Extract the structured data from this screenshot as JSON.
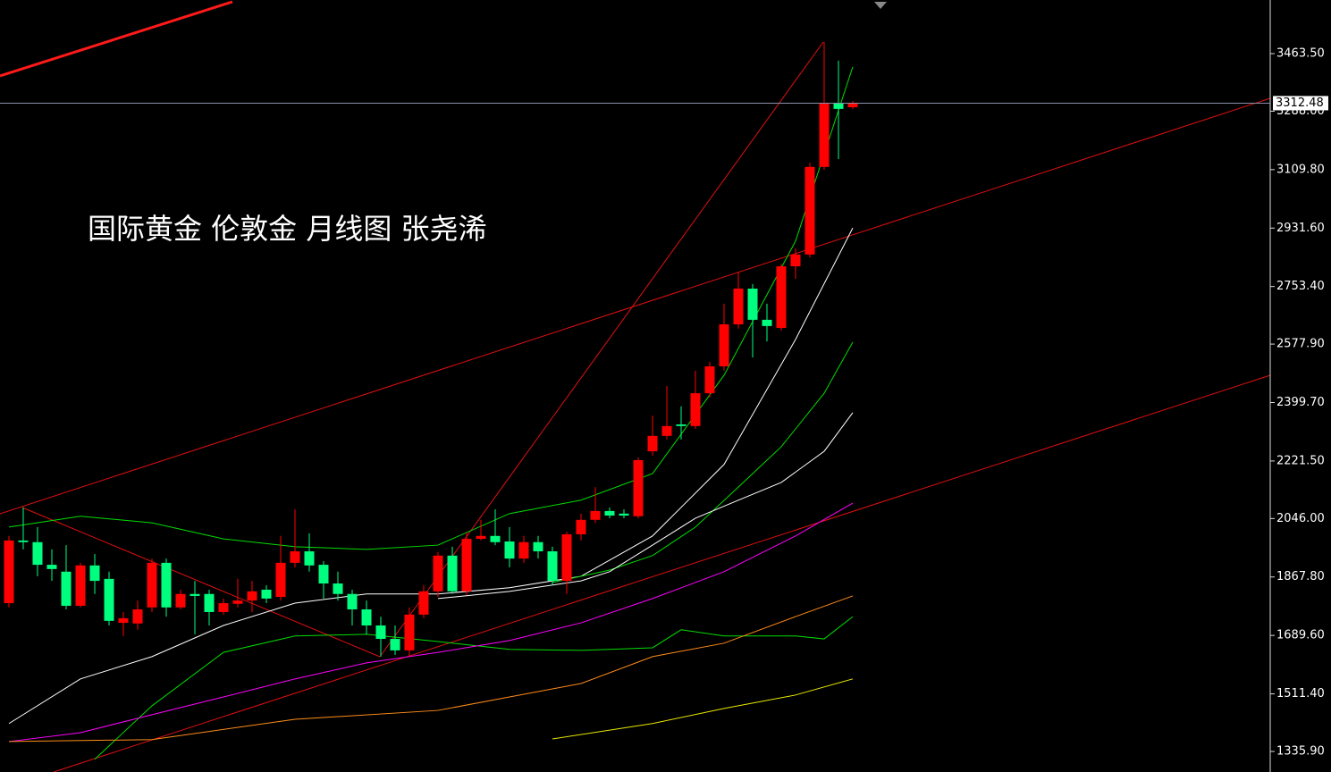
{
  "chart_data": {
    "type": "candlestick",
    "title": "国际黄金 伦敦金  月线图 张尧浠",
    "up_color": "#ff0000",
    "down_color": "#00ff7f",
    "open": [
      1788,
      1979,
      1974,
      1905,
      1884,
      1780,
      1903,
      1862,
      1728,
      1726,
      1775,
      1911,
      1775,
      1816,
      1816,
      1761,
      1786,
      1796,
      1829,
      1807,
      1911,
      1946,
      1905,
      1848,
      1816,
      1769,
      1720,
      1679,
      1644,
      1753,
      1824,
      1933,
      1824,
      1984,
      1993,
      1976,
      1924,
      1974,
      1946,
      1856,
      1998,
      2042,
      2069,
      2061,
      2053,
      2251,
      2298,
      2333,
      2328,
      2428,
      2510,
      2638,
      2747,
      2652,
      2627,
      2815,
      2851,
      3118,
      3311,
      3300
    ],
    "high": [
      1993,
      2080,
      2020,
      1952,
      1965,
      1911,
      1938,
      1884,
      1761,
      1796,
      1924,
      1924,
      1829,
      1856,
      1829,
      1802,
      1862,
      1856,
      1843,
      1993,
      2074,
      2001,
      1916,
      1884,
      1829,
      1796,
      1747,
      1720,
      1775,
      1843,
      1944,
      1960,
      2003,
      2042,
      2074,
      2020,
      1993,
      1993,
      1960,
      2006,
      2061,
      2142,
      2080,
      2074,
      2232,
      2360,
      2450,
      2388,
      2497,
      2524,
      2701,
      2796,
      2761,
      2701,
      2823,
      2870,
      3131,
      3499,
      3442,
      3319
    ],
    "low": [
      1775,
      1952,
      1870,
      1856,
      1769,
      1775,
      1816,
      1720,
      1688,
      1707,
      1761,
      1747,
      1769,
      1693,
      1720,
      1753,
      1775,
      1761,
      1788,
      1796,
      1897,
      1884,
      1802,
      1796,
      1720,
      1693,
      1625,
      1630,
      1625,
      1742,
      1807,
      1816,
      1813,
      1979,
      1965,
      1897,
      1911,
      1924,
      1843,
      1816,
      1979,
      2033,
      2047,
      2047,
      2047,
      2238,
      2287,
      2287,
      2319,
      2415,
      2497,
      2625,
      2537,
      2586,
      2619,
      2777,
      2842,
      3109,
      3142,
      3295
    ],
    "close": [
      1979,
      1974,
      1905,
      1892,
      1780,
      1903,
      1856,
      1734,
      1742,
      1769,
      1911,
      1775,
      1816,
      1810,
      1761,
      1788,
      1796,
      1824,
      1802,
      1911,
      1946,
      1903,
      1848,
      1816,
      1769,
      1720,
      1679,
      1644,
      1753,
      1824,
      1933,
      1824,
      1984,
      1993,
      1974,
      1924,
      1974,
      1946,
      1856,
      1998,
      2042,
      2069,
      2055,
      2055,
      2224,
      2298,
      2328,
      2328,
      2428,
      2510,
      2638,
      2747,
      2652,
      2633,
      2815,
      2851,
      3118,
      3311,
      3295,
      3311
    ],
    "ylim": [
      1273.2,
      3627
    ],
    "yticks": [
      {
        "value": 1335.9,
        "label": "1335.90"
      },
      {
        "value": 1511.4,
        "label": "1511.40"
      },
      {
        "value": 1689.6,
        "label": "1689.60"
      },
      {
        "value": 1867.8,
        "label": "1867.80"
      },
      {
        "value": 2046,
        "label": "2046.00"
      },
      {
        "value": 2221.5,
        "label": "2221.50"
      },
      {
        "value": 2399.7,
        "label": "2399.70"
      },
      {
        "value": 2577.9,
        "label": "2577.90"
      },
      {
        "value": 2753.4,
        "label": "2753.40"
      },
      {
        "value": 2931.6,
        "label": "2931.60"
      },
      {
        "value": 3109.8,
        "label": "3109.80"
      },
      {
        "value": 3288,
        "label": "3288.00"
      },
      {
        "value": 3463.5,
        "label": "3463.50"
      }
    ],
    "last_price": 3312.48,
    "overlays": [
      {
        "color": "#ffffff",
        "x": [
          0,
          5,
          10,
          15,
          20,
          25,
          30,
          35,
          40,
          45,
          50,
          55,
          59
        ],
        "values": [
          1421,
          1557,
          1625,
          1720,
          1788,
          1816,
          1816,
          1835,
          1870,
          1993,
          2211,
          2592,
          2932
        ]
      },
      {
        "color": "#00dd00",
        "x": [
          0,
          5,
          10,
          15,
          20,
          25,
          30,
          35,
          40,
          45,
          50,
          55,
          59
        ],
        "values": [
          2020,
          2053,
          2033,
          1984,
          1960,
          1952,
          1965,
          2061,
          2102,
          2183,
          2483,
          2892,
          3423
        ]
      },
      {
        "color": "#00dd00",
        "x": [
          6,
          10,
          15,
          20,
          25,
          30,
          35,
          40,
          45,
          47,
          50,
          55,
          57,
          59
        ],
        "values": [
          1312,
          1475,
          1638,
          1688,
          1693,
          1671,
          1647,
          1644,
          1652,
          1707,
          1688,
          1688,
          1679,
          1747
        ]
      },
      {
        "color": "#00dd00",
        "x": [
          38,
          42,
          45,
          48,
          51,
          54,
          57,
          59
        ],
        "values": [
          1851,
          1889,
          1933,
          2020,
          2142,
          2265,
          2428,
          2584
        ]
      },
      {
        "color": "#ffffff",
        "x": [
          30,
          35,
          40,
          42,
          45,
          48,
          51,
          54,
          57,
          59
        ],
        "values": [
          1802,
          1824,
          1856,
          1884,
          1965,
          2047,
          2102,
          2156,
          2251,
          2369
        ]
      },
      {
        "color": "#ff00ff",
        "x": [
          0,
          5,
          10,
          15,
          20,
          25,
          30,
          35,
          40,
          45,
          50,
          55,
          59
        ],
        "values": [
          1366,
          1393,
          1448,
          1502,
          1557,
          1606,
          1638,
          1674,
          1728,
          1802,
          1884,
          1993,
          2093
        ]
      },
      {
        "color": "#ff8c1a",
        "x": [
          0,
          10,
          20,
          30,
          35,
          40,
          45,
          50,
          55,
          59
        ],
        "values": [
          1366,
          1372,
          1434,
          1461,
          1502,
          1543,
          1625,
          1666,
          1747,
          1810
        ]
      },
      {
        "color": "#e8e800",
        "x": [
          38,
          45,
          50,
          55,
          59
        ],
        "values": [
          1374,
          1421,
          1467,
          1508,
          1557
        ]
      }
    ]
  }
}
